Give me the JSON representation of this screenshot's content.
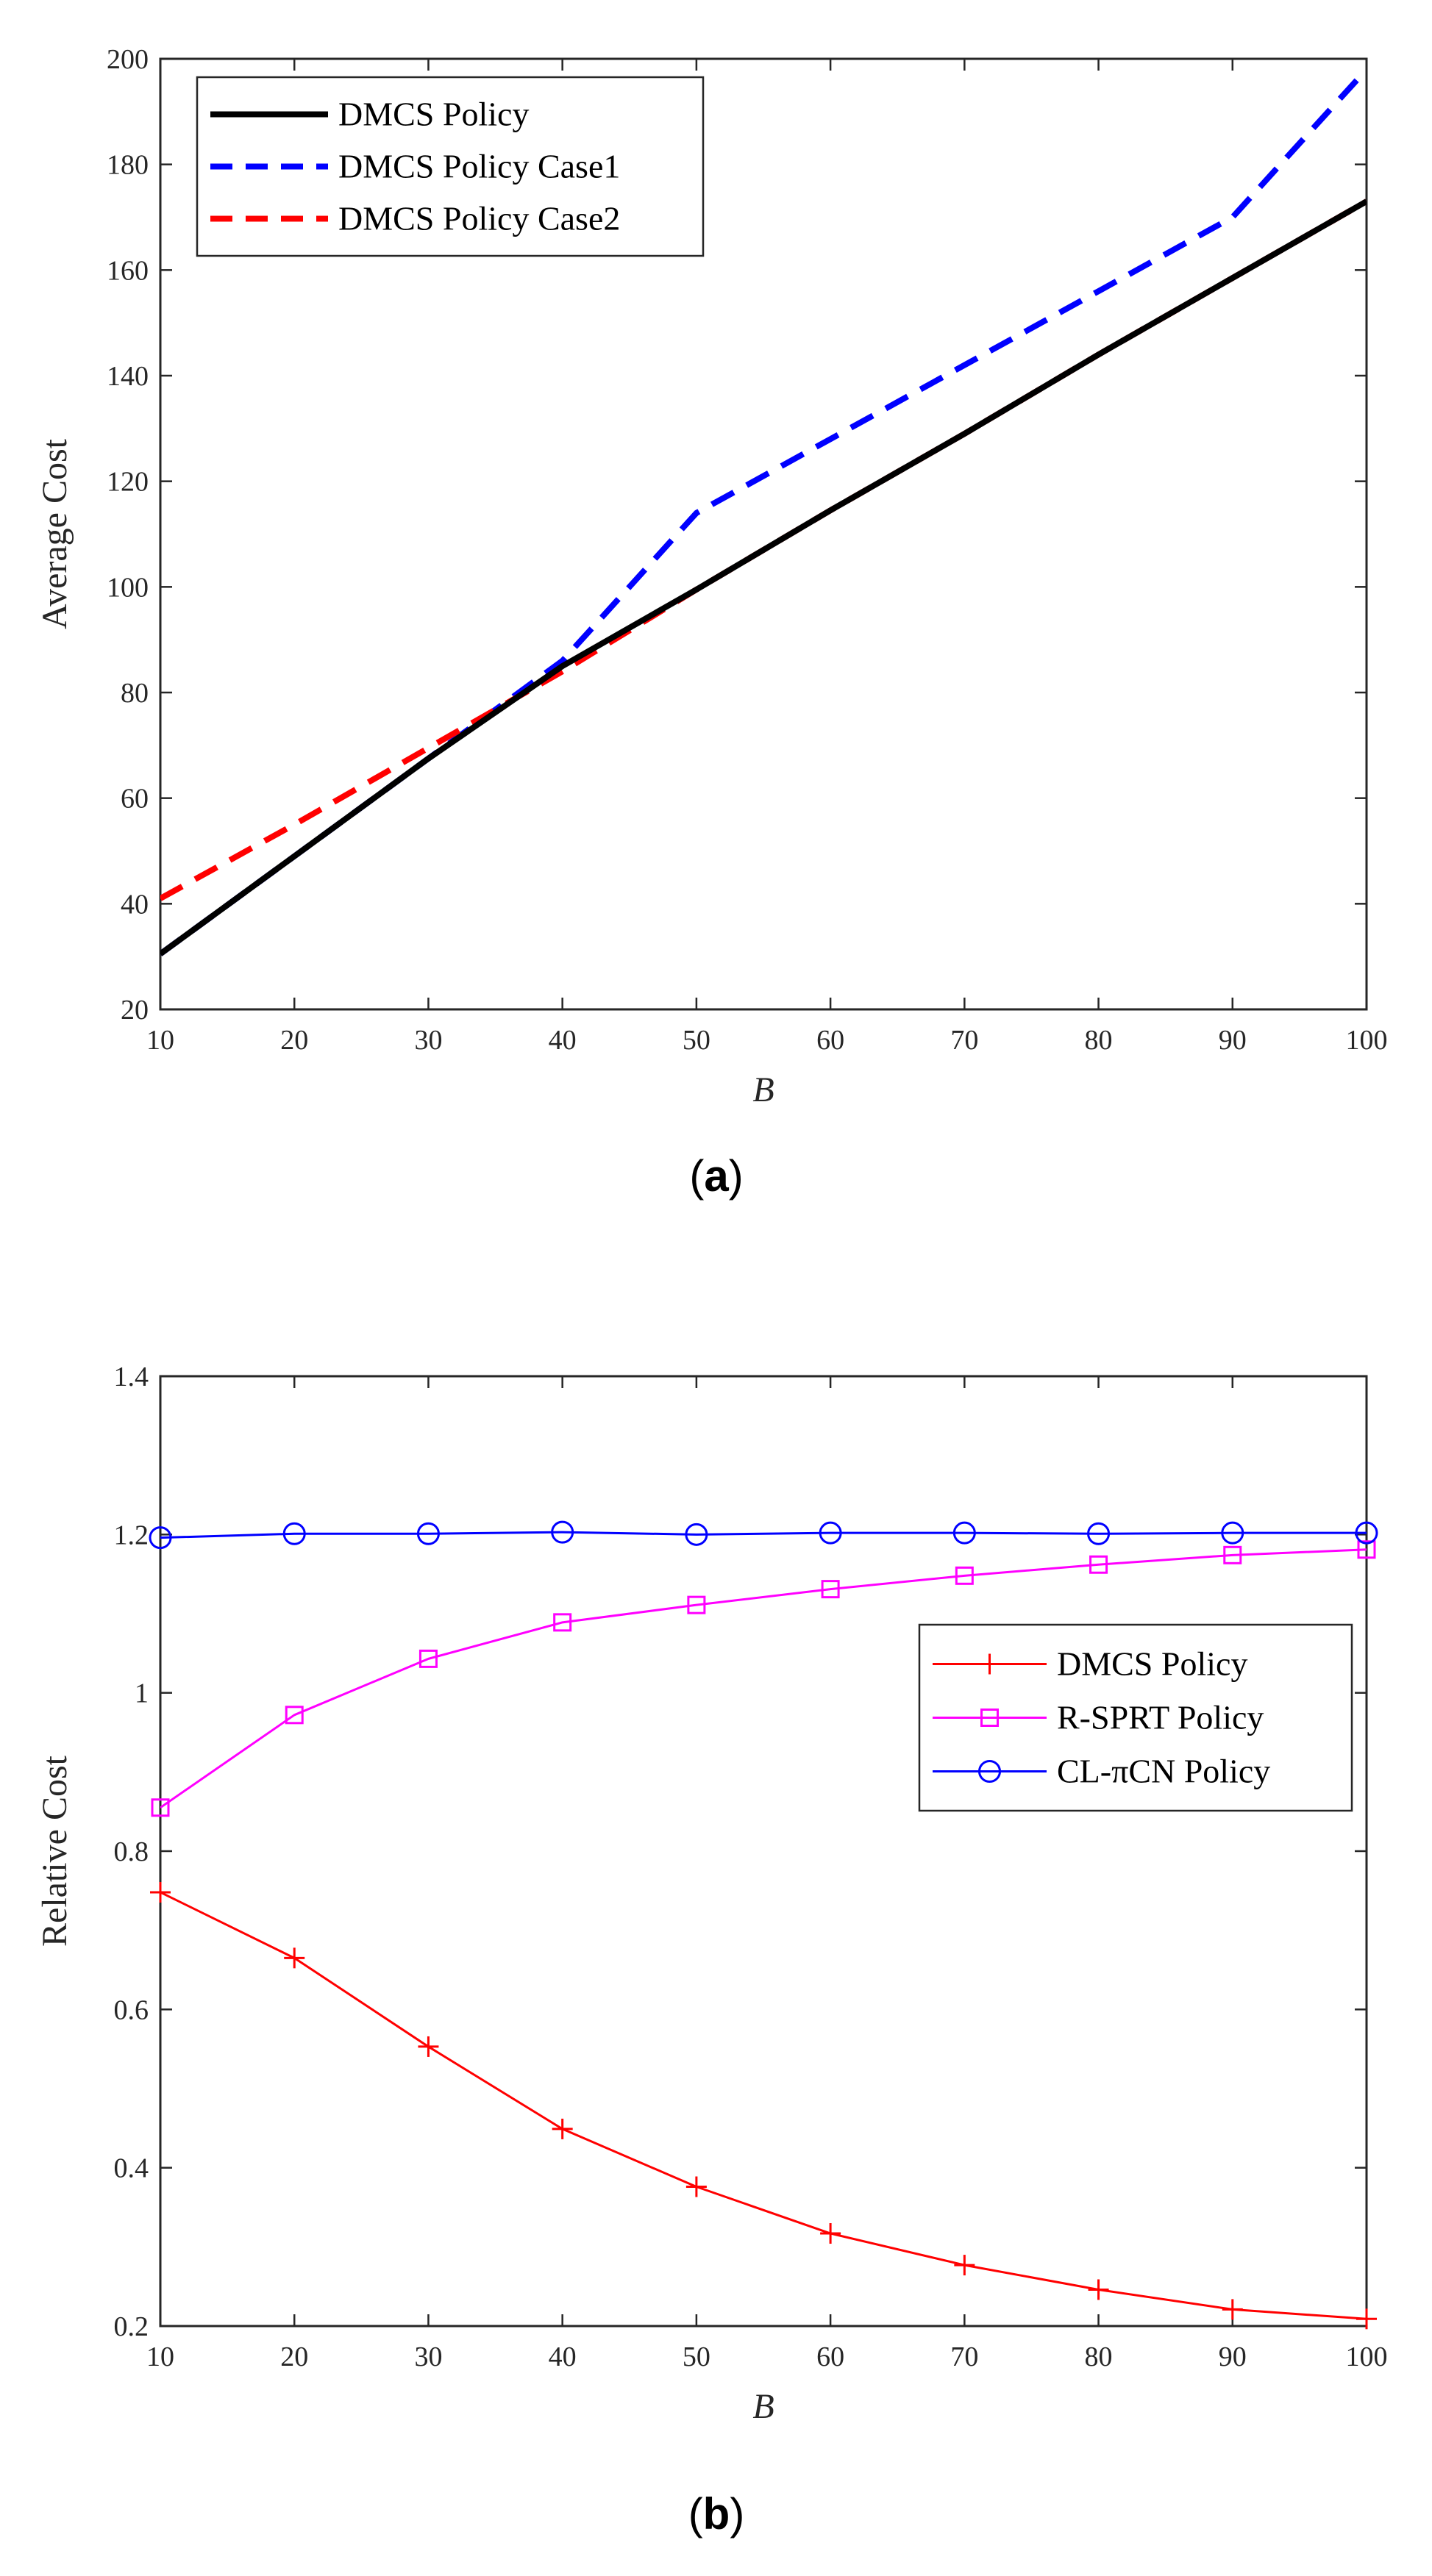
{
  "chart_data": [
    {
      "type": "line",
      "caption": {
        "open": "(",
        "letter": "a",
        "close": ")"
      },
      "xlabel": "B",
      "ylabel": "Average Cost",
      "xlim": [
        10,
        100
      ],
      "ylim": [
        20,
        200
      ],
      "xticks": [
        10,
        20,
        30,
        40,
        50,
        60,
        70,
        80,
        90,
        100
      ],
      "yticks": [
        20,
        40,
        60,
        80,
        100,
        120,
        140,
        160,
        180,
        200
      ],
      "grid": false,
      "legend_position": "top-left",
      "series": [
        {
          "name": "DMCS Policy Case1",
          "color": "#0000ff",
          "dash": "dashed",
          "width": "bold",
          "x": [
            10,
            20,
            30,
            40,
            50,
            60,
            70,
            80,
            90,
            100
          ],
          "y": [
            30.5,
            49,
            67.5,
            86,
            114,
            128,
            142,
            156,
            170,
            198
          ]
        },
        {
          "name": "DMCS Policy Case2",
          "color": "#ff0000",
          "dash": "dashed",
          "width": "bold",
          "x": [
            10,
            20,
            30,
            40,
            50,
            60,
            70,
            80,
            90,
            100
          ],
          "y": [
            41,
            55,
            69.5,
            84,
            99.5,
            114.5,
            129,
            144,
            158.5,
            173
          ]
        },
        {
          "name": "DMCS Policy",
          "color": "#000000",
          "dash": "solid",
          "width": "bold",
          "x": [
            10,
            20,
            30,
            40,
            50,
            60,
            70,
            80,
            90,
            100
          ],
          "y": [
            30.5,
            49,
            67.5,
            85,
            99.5,
            114.5,
            129,
            144,
            158.5,
            173
          ]
        }
      ],
      "legend_order": [
        "DMCS Policy",
        "DMCS Policy Case1",
        "DMCS Policy Case2"
      ]
    },
    {
      "type": "line",
      "caption": {
        "open": "(",
        "letter": "b",
        "close": ")"
      },
      "xlabel": "B",
      "ylabel": "Relative Cost",
      "xlim": [
        10,
        100
      ],
      "ylim": [
        0.2,
        1.4
      ],
      "xticks": [
        10,
        20,
        30,
        40,
        50,
        60,
        70,
        80,
        90,
        100
      ],
      "yticks": [
        0.2,
        0.4,
        0.6,
        0.8,
        1,
        1.2,
        1.4
      ],
      "ytick_labels": [
        "0.2",
        "0.4",
        "0.6",
        "0.8",
        "1",
        "1.2",
        "1.4"
      ],
      "grid": false,
      "legend_position": "right",
      "series": [
        {
          "name": "DMCS Policy",
          "color": "#ff0000",
          "marker": "plus",
          "x": [
            10,
            20,
            30,
            40,
            50,
            60,
            70,
            80,
            90,
            100
          ],
          "y": [
            0.748,
            0.665,
            0.553,
            0.449,
            0.376,
            0.317,
            0.277,
            0.246,
            0.221,
            0.209
          ]
        },
        {
          "name": "R-SPRT Policy",
          "color": "#ff00ff",
          "marker": "square",
          "x": [
            10,
            20,
            30,
            40,
            50,
            60,
            70,
            80,
            90,
            100
          ],
          "y": [
            0.855,
            0.972,
            1.043,
            1.089,
            1.111,
            1.131,
            1.148,
            1.162,
            1.174,
            1.181
          ]
        },
        {
          "name": "CL-πCN Policy",
          "color": "#0000ff",
          "marker": "circle",
          "x": [
            10,
            20,
            30,
            40,
            50,
            60,
            70,
            80,
            90,
            100
          ],
          "y": [
            1.196,
            1.201,
            1.201,
            1.203,
            1.2,
            1.202,
            1.202,
            1.201,
            1.202,
            1.202
          ]
        }
      ],
      "legend_order": [
        "DMCS Policy",
        "R-SPRT Policy",
        "CL-πCN Policy"
      ]
    }
  ]
}
